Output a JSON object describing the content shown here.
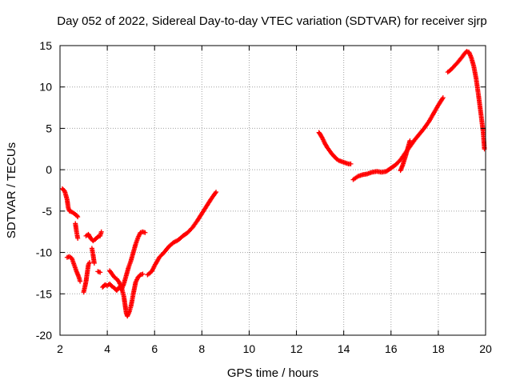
{
  "chart_data": {
    "type": "scatter",
    "title": "Day 052 of 2022, Sidereal Day-to-day VTEC variation (SDTVAR) for receiver sjrp",
    "xlabel": "GPS time / hours",
    "ylabel": "SDTVAR / TECUs",
    "xlim": [
      2,
      20
    ],
    "ylim": [
      -20,
      15
    ],
    "x_ticks": [
      "2",
      "4",
      "6",
      "8",
      "10",
      "12",
      "14",
      "16",
      "18",
      "20"
    ],
    "y_ticks": [
      "15",
      "10",
      "5",
      "0",
      "-5",
      "-10",
      "-15",
      "-20"
    ],
    "grid": true,
    "marker": "+",
    "series_color": "#ff0000",
    "series": [
      {
        "name": "SDTVAR",
        "segments": [
          [
            [
              2.1,
              -2.3
            ],
            [
              2.2,
              -2.6
            ],
            [
              2.3,
              -3.6
            ],
            [
              2.35,
              -4.6
            ],
            [
              2.4,
              -5.0
            ],
            [
              2.5,
              -5.1
            ],
            [
              2.6,
              -5.3
            ],
            [
              2.7,
              -5.5
            ],
            [
              2.75,
              -5.7
            ]
          ],
          [
            [
              2.3,
              -10.6
            ],
            [
              2.4,
              -10.5
            ],
            [
              2.5,
              -10.7
            ],
            [
              2.6,
              -11.5
            ],
            [
              2.7,
              -12.3
            ],
            [
              2.8,
              -13.0
            ],
            [
              2.85,
              -13.5
            ]
          ],
          [
            [
              2.65,
              -6.5
            ],
            [
              2.7,
              -7.5
            ],
            [
              2.75,
              -8.3
            ]
          ],
          [
            [
              3.0,
              -14.8
            ],
            [
              3.05,
              -14.2
            ],
            [
              3.1,
              -13.5
            ],
            [
              3.15,
              -12.5
            ],
            [
              3.2,
              -11.5
            ],
            [
              3.25,
              -11.2
            ]
          ],
          [
            [
              3.1,
              -8.0
            ],
            [
              3.2,
              -7.8
            ],
            [
              3.3,
              -8.3
            ],
            [
              3.4,
              -8.6
            ],
            [
              3.5,
              -8.4
            ],
            [
              3.6,
              -8.1
            ],
            [
              3.7,
              -8.0
            ],
            [
              3.75,
              -7.5
            ]
          ],
          [
            [
              3.35,
              -9.5
            ],
            [
              3.4,
              -10.3
            ],
            [
              3.45,
              -11.3
            ]
          ],
          [
            [
              3.6,
              -12.3
            ],
            [
              3.7,
              -12.4
            ]
          ],
          [
            [
              3.8,
              -14.2
            ],
            [
              3.9,
              -13.9
            ],
            [
              4.0,
              -14.0
            ],
            [
              4.1,
              -13.8
            ],
            [
              4.2,
              -14.1
            ],
            [
              4.3,
              -14.3
            ],
            [
              4.4,
              -14.6
            ],
            [
              4.5,
              -14.2
            ],
            [
              4.6,
              -14.5
            ],
            [
              4.7,
              -13.8
            ],
            [
              4.8,
              -12.8
            ],
            [
              4.9,
              -11.8
            ],
            [
              5.0,
              -11.0
            ],
            [
              5.1,
              -10.0
            ],
            [
              5.2,
              -9.0
            ],
            [
              5.3,
              -8.2
            ],
            [
              5.4,
              -7.6
            ],
            [
              5.5,
              -7.5
            ],
            [
              5.6,
              -7.6
            ]
          ],
          [
            [
              4.1,
              -12.2
            ],
            [
              4.2,
              -12.6
            ],
            [
              4.3,
              -13.0
            ],
            [
              4.4,
              -13.2
            ],
            [
              4.5,
              -13.6
            ],
            [
              4.6,
              -14.2
            ],
            [
              4.7,
              -15.3
            ],
            [
              4.75,
              -16.3
            ],
            [
              4.8,
              -17.3
            ],
            [
              4.85,
              -17.7
            ],
            [
              4.9,
              -17.4
            ],
            [
              4.95,
              -17.0
            ],
            [
              5.0,
              -16.5
            ],
            [
              5.05,
              -15.8
            ],
            [
              5.1,
              -15.0
            ],
            [
              5.15,
              -14.3
            ],
            [
              5.2,
              -13.6
            ],
            [
              5.3,
              -13.0
            ],
            [
              5.4,
              -12.7
            ],
            [
              5.5,
              -12.6
            ]
          ],
          [
            [
              5.7,
              -12.7
            ],
            [
              5.8,
              -12.5
            ],
            [
              5.9,
              -12.2
            ],
            [
              6.0,
              -11.6
            ],
            [
              6.2,
              -10.6
            ],
            [
              6.4,
              -10.0
            ],
            [
              6.6,
              -9.3
            ],
            [
              6.8,
              -8.8
            ],
            [
              7.0,
              -8.5
            ],
            [
              7.2,
              -8.0
            ],
            [
              7.4,
              -7.6
            ],
            [
              7.6,
              -7.0
            ],
            [
              7.8,
              -6.2
            ],
            [
              8.0,
              -5.3
            ],
            [
              8.2,
              -4.4
            ],
            [
              8.4,
              -3.5
            ],
            [
              8.6,
              -2.7
            ]
          ],
          [
            [
              12.95,
              4.5
            ],
            [
              13.0,
              4.3
            ],
            [
              13.1,
              3.8
            ],
            [
              13.2,
              3.2
            ],
            [
              13.3,
              2.7
            ],
            [
              13.4,
              2.3
            ],
            [
              13.5,
              1.9
            ],
            [
              13.6,
              1.6
            ],
            [
              13.7,
              1.3
            ],
            [
              13.8,
              1.1
            ],
            [
              13.9,
              1.0
            ],
            [
              14.0,
              0.9
            ],
            [
              14.1,
              0.8
            ],
            [
              14.2,
              0.7
            ],
            [
              14.3,
              0.7
            ]
          ],
          [
            [
              14.4,
              -1.2
            ],
            [
              14.5,
              -1.0
            ],
            [
              14.6,
              -0.8
            ],
            [
              14.8,
              -0.6
            ],
            [
              15.0,
              -0.5
            ],
            [
              15.2,
              -0.3
            ],
            [
              15.4,
              -0.2
            ],
            [
              15.6,
              -0.3
            ],
            [
              15.8,
              -0.2
            ],
            [
              16.0,
              0.2
            ],
            [
              16.2,
              0.6
            ],
            [
              16.4,
              1.2
            ],
            [
              16.6,
              2.0
            ],
            [
              16.8,
              2.8
            ],
            [
              17.0,
              3.6
            ],
            [
              17.2,
              4.3
            ],
            [
              17.4,
              5.0
            ],
            [
              17.6,
              5.8
            ],
            [
              17.8,
              6.8
            ],
            [
              18.0,
              7.8
            ],
            [
              18.2,
              8.7
            ]
          ],
          [
            [
              16.4,
              -0.1
            ],
            [
              16.5,
              0.6
            ],
            [
              16.6,
              1.5
            ],
            [
              16.7,
              2.5
            ],
            [
              16.8,
              3.5
            ]
          ],
          [
            [
              18.4,
              11.8
            ],
            [
              18.5,
              12.0
            ],
            [
              18.6,
              12.3
            ],
            [
              18.8,
              12.9
            ],
            [
              19.0,
              13.6
            ],
            [
              19.1,
              14.0
            ],
            [
              19.2,
              14.3
            ],
            [
              19.3,
              14.2
            ],
            [
              19.4,
              13.5
            ],
            [
              19.5,
              12.5
            ],
            [
              19.6,
              11.0
            ],
            [
              19.7,
              9.0
            ],
            [
              19.8,
              6.8
            ],
            [
              19.9,
              4.5
            ],
            [
              19.95,
              2.5
            ]
          ]
        ]
      }
    ]
  }
}
